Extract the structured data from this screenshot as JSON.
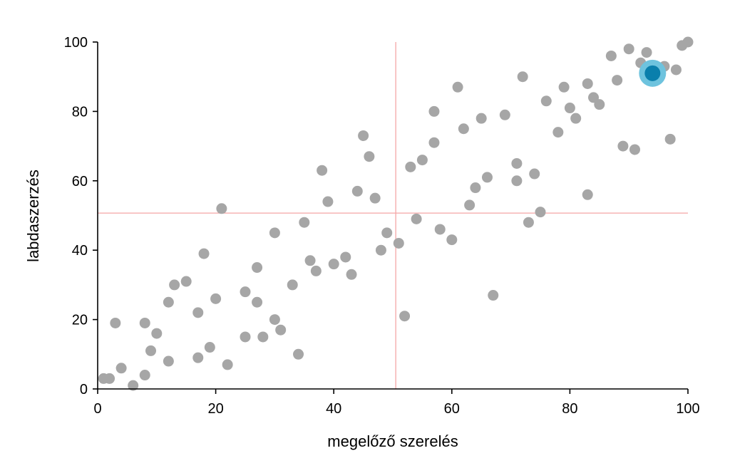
{
  "chart_data": {
    "type": "scatter",
    "xlabel": "megelőző szerelés",
    "ylabel": "labdaszerzés",
    "xlim": [
      0,
      100
    ],
    "ylim": [
      0,
      100
    ],
    "xticks": [
      "0",
      "20",
      "40",
      "60",
      "80",
      "100"
    ],
    "yticks": [
      "0",
      "20",
      "40",
      "60",
      "80",
      "100"
    ],
    "grid": false,
    "reference_lines": {
      "x": 50.5,
      "y": 50.7,
      "color": "#f4a6a6"
    },
    "point_color": "#a6a6a6",
    "highlight_color": "#0a7fac",
    "highlight_halo_color": "#6ec3de",
    "highlight": {
      "x": 94,
      "y": 91
    },
    "points": [
      [
        1,
        3
      ],
      [
        2,
        3
      ],
      [
        3,
        19
      ],
      [
        4,
        6
      ],
      [
        6,
        1
      ],
      [
        8,
        19
      ],
      [
        8,
        4
      ],
      [
        9,
        11
      ],
      [
        10,
        16
      ],
      [
        12,
        25
      ],
      [
        12,
        8
      ],
      [
        13,
        30
      ],
      [
        15,
        31
      ],
      [
        17,
        22
      ],
      [
        17,
        9
      ],
      [
        18,
        39
      ],
      [
        19,
        12
      ],
      [
        20,
        26
      ],
      [
        21,
        52
      ],
      [
        22,
        7
      ],
      [
        25,
        28
      ],
      [
        25,
        15
      ],
      [
        27,
        35
      ],
      [
        27,
        25
      ],
      [
        28,
        15
      ],
      [
        30,
        45
      ],
      [
        30,
        20
      ],
      [
        31,
        17
      ],
      [
        33,
        30
      ],
      [
        34,
        10
      ],
      [
        35,
        48
      ],
      [
        36,
        37
      ],
      [
        37,
        34
      ],
      [
        38,
        63
      ],
      [
        39,
        54
      ],
      [
        40,
        36
      ],
      [
        42,
        38
      ],
      [
        43,
        33
      ],
      [
        44,
        57
      ],
      [
        45,
        73
      ],
      [
        46,
        67
      ],
      [
        47,
        55
      ],
      [
        48,
        40
      ],
      [
        49,
        45
      ],
      [
        51,
        42
      ],
      [
        52,
        21
      ],
      [
        53,
        64
      ],
      [
        54,
        49
      ],
      [
        55,
        66
      ],
      [
        57,
        80
      ],
      [
        57,
        71
      ],
      [
        58,
        46
      ],
      [
        60,
        43
      ],
      [
        61,
        87
      ],
      [
        62,
        75
      ],
      [
        63,
        53
      ],
      [
        64,
        58
      ],
      [
        65,
        78
      ],
      [
        66,
        61
      ],
      [
        67,
        27
      ],
      [
        69,
        79
      ],
      [
        71,
        65
      ],
      [
        71,
        60
      ],
      [
        72,
        90
      ],
      [
        73,
        48
      ],
      [
        74,
        62
      ],
      [
        75,
        51
      ],
      [
        76,
        83
      ],
      [
        78,
        74
      ],
      [
        79,
        87
      ],
      [
        80,
        81
      ],
      [
        81,
        78
      ],
      [
        83,
        88
      ],
      [
        83,
        56
      ],
      [
        84,
        84
      ],
      [
        85,
        82
      ],
      [
        87,
        96
      ],
      [
        88,
        89
      ],
      [
        89,
        70
      ],
      [
        90,
        98
      ],
      [
        91,
        69
      ],
      [
        92,
        94
      ],
      [
        93,
        97
      ],
      [
        94,
        93
      ],
      [
        96,
        93
      ],
      [
        97,
        72
      ],
      [
        98,
        92
      ],
      [
        99,
        99
      ],
      [
        100,
        100
      ]
    ]
  }
}
